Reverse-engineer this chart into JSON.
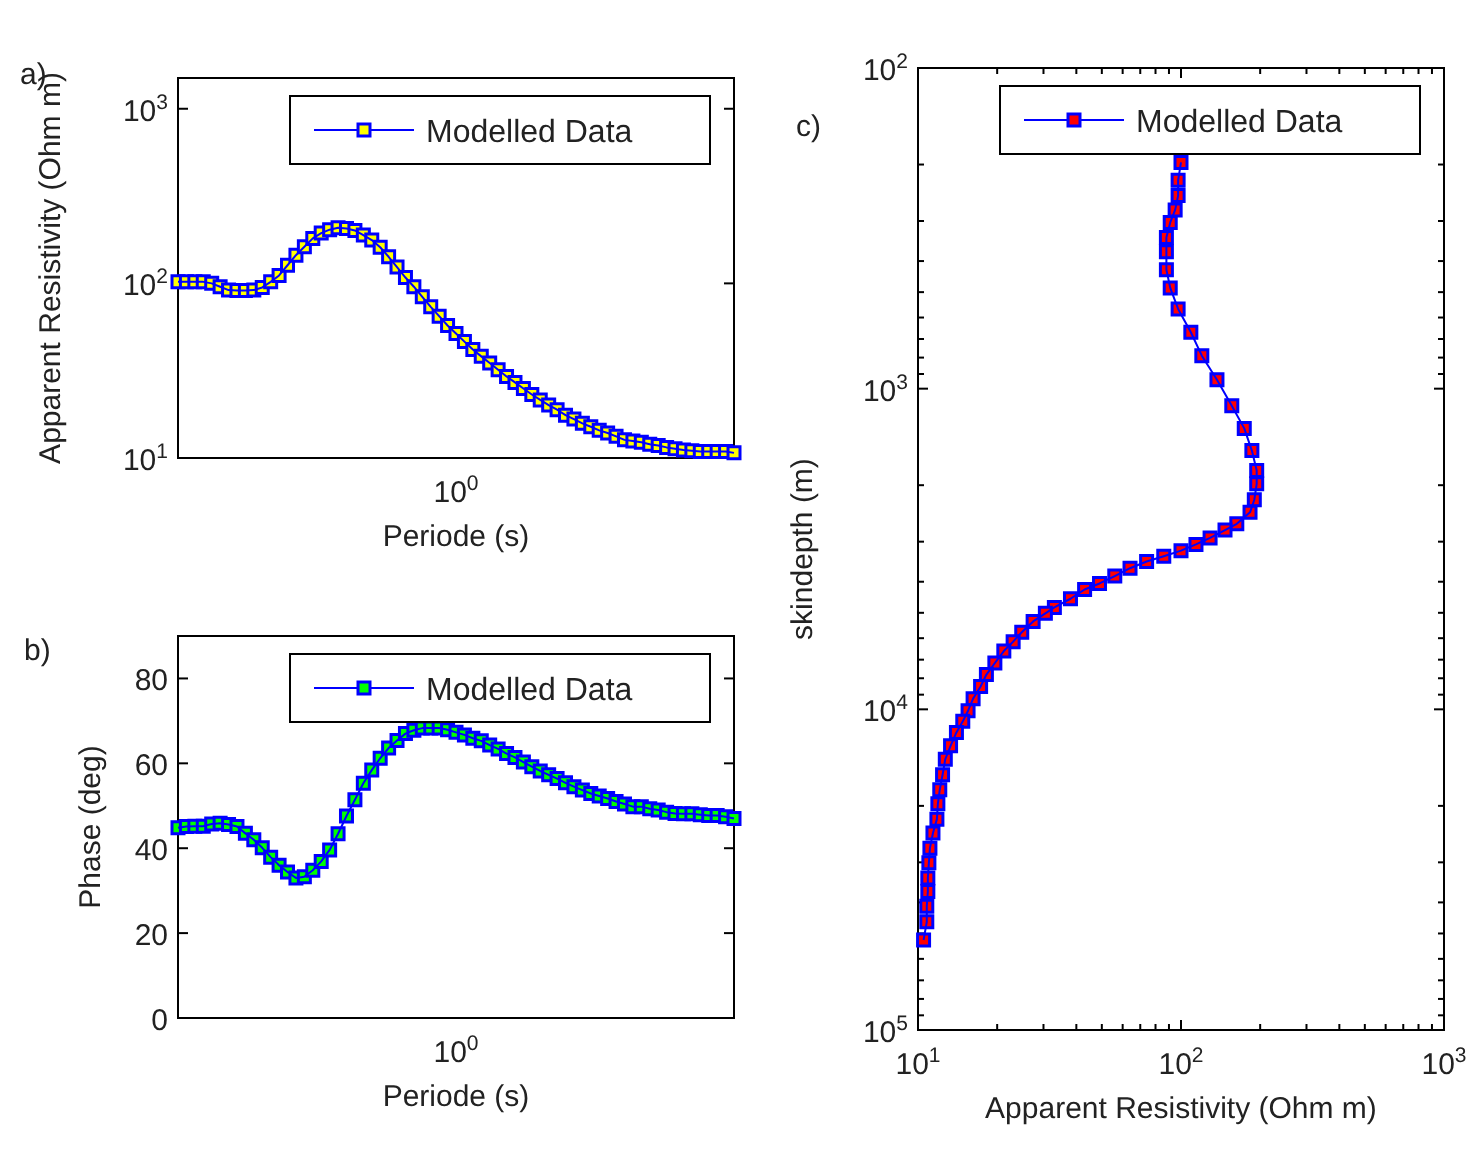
{
  "chart_data": [
    {
      "type": "line",
      "xlabel": "Periode (s)",
      "ylabel": "Apparent Resistivity (Ohm m)",
      "annotations": [
        "a)",
        "10$^{0}$"
      ],
      "log": "y",
      "grid": false,
      "legend": "top right",
      "marker": "square",
      "line_style": "solid",
      "ylim": [
        10,
        1500
      ],
      "yticks": [
        {
          "value": 10,
          "label": "10$^{1}$"
        },
        {
          "value": 100,
          "label": "10$^{2}$"
        },
        {
          "value": 1000,
          "label": "10$^{3}$"
        }
      ],
      "categories": [
        null,
        null,
        null,
        null,
        null,
        null,
        null,
        null,
        null,
        null,
        null,
        null,
        null,
        null,
        null,
        null,
        null,
        null,
        null,
        null,
        null,
        null,
        null,
        null,
        null,
        null,
        null,
        null,
        null,
        null,
        null,
        null,
        null,
        null,
        null,
        null,
        null,
        null,
        null,
        null,
        null,
        null,
        null,
        null,
        null,
        null,
        null,
        null,
        null,
        null,
        null,
        null,
        null,
        null,
        null,
        null,
        null,
        null,
        null,
        null,
        null,
        null,
        null,
        null,
        null,
        null,
        null
      ],
      "series": [
        {
          "name": "Modelled Data",
          "color": "#0000ff",
          "colors": [
            "#ffff00",
            "#ffff00",
            "#ffff00",
            "#ffff00",
            "#ffff00",
            "#ffff00",
            "#ffff00",
            "#ffff00",
            "#ffff00",
            "#ffff00",
            "#ffff00",
            "#ffff00",
            "#ffff00",
            "#ffff00",
            "#ffff00",
            "#ffff00",
            "#ffff00",
            "#ffff00",
            "#ffff00",
            "#ffff00",
            "#ffff00",
            "#ffff00",
            "#ffff00",
            "#ffff00",
            "#ffff00",
            "#ffff00",
            "#ffff00",
            "#ffff00",
            "#ffff00",
            "#ffff00",
            "#ffff00",
            "#ffff00",
            "#ffff00",
            "#ffff00",
            "#ffff00",
            "#ffff00",
            "#ffff00",
            "#ffff00",
            "#ffff00",
            "#ffff00",
            "#ffff00",
            "#ffff00",
            "#ffff00",
            "#ffff00",
            "#ffff00",
            "#ffff00",
            "#ffff00",
            "#ffff00",
            "#ffff00",
            "#ffff00",
            "#ffff00",
            "#ffff00",
            "#ffff00",
            "#ffff00",
            "#ffff00",
            "#ffff00",
            "#ffff00",
            "#ffff00",
            "#ffff00",
            "#ffff00",
            "#ffff00",
            "#ffff00",
            "#ffff00",
            "#ffff00",
            "#ffff00",
            "#ffff00",
            "#ffff00"
          ],
          "values": [
            102,
            102,
            102,
            102,
            100,
            95.7,
            91.5,
            91,
            91,
            91.5,
            94.8,
            102,
            111,
            127,
            145,
            162,
            181,
            194,
            203,
            208,
            206,
            201,
            189,
            177,
            161,
            142,
            124,
            108,
            95.7,
            83.8,
            73.4,
            64.9,
            57.4,
            51.6,
            46.4,
            41.8,
            38.2,
            35,
            32,
            29.3,
            27.1,
            25,
            23.1,
            21.5,
            20.1,
            18.9,
            17.6,
            16.7,
            15.8,
            15.1,
            14.4,
            13.9,
            13.3,
            12.7,
            12.5,
            12.3,
            12,
            11.8,
            11.5,
            11.3,
            11.1,
            11,
            10.9,
            10.9,
            10.9,
            10.9,
            10.7
          ]
        }
      ]
    },
    {
      "type": "line",
      "xlabel": "Periode (s)",
      "ylabel": "Phase (deg)",
      "annotations": [
        "b)",
        "10$^{0}$"
      ],
      "grid": false,
      "legend": "top right",
      "marker": "square",
      "line_style": "solid",
      "ylim": [
        0,
        90
      ],
      "yticks": [
        0,
        20,
        40,
        60,
        80
      ],
      "categories": [
        null,
        null,
        null,
        null,
        null,
        null,
        null,
        null,
        null,
        null,
        null,
        null,
        null,
        null,
        null,
        null,
        null,
        null,
        null,
        null,
        null,
        null,
        null,
        null,
        null,
        null,
        null,
        null,
        null,
        null,
        null,
        null,
        null,
        null,
        null,
        null,
        null,
        null,
        null,
        null,
        null,
        null,
        null,
        null,
        null,
        null,
        null,
        null,
        null,
        null,
        null,
        null,
        null,
        null,
        null,
        null,
        null,
        null,
        null,
        null,
        null,
        null,
        null,
        null,
        null,
        null,
        null
      ],
      "series": [
        {
          "name": "Modelled Data",
          "color": "#0000ff",
          "colors": [
            "#00ff00",
            "#00ff00",
            "#00ff00",
            "#00ff00",
            "#00ff00",
            "#00ff00",
            "#00ff00",
            "#00ff00",
            "#00ff00",
            "#00ff00",
            "#00ff00",
            "#00ff00",
            "#00ff00",
            "#00ff00",
            "#00ff00",
            "#00ff00",
            "#00ff00",
            "#00ff00",
            "#00ff00",
            "#00ff00",
            "#00ff00",
            "#00ff00",
            "#00ff00",
            "#00ff00",
            "#00ff00",
            "#00ff00",
            "#00ff00",
            "#00ff00",
            "#00ff00",
            "#00ff00",
            "#00ff00",
            "#00ff00",
            "#00ff00",
            "#00ff00",
            "#00ff00",
            "#00ff00",
            "#00ff00",
            "#00ff00",
            "#00ff00",
            "#00ff00",
            "#00ff00",
            "#00ff00",
            "#00ff00",
            "#00ff00",
            "#00ff00",
            "#00ff00",
            "#00ff00",
            "#00ff00",
            "#00ff00",
            "#00ff00",
            "#00ff00",
            "#00ff00",
            "#00ff00",
            "#00ff00",
            "#00ff00",
            "#00ff00",
            "#00ff00",
            "#00ff00",
            "#00ff00",
            "#00ff00",
            "#00ff00",
            "#00ff00",
            "#00ff00",
            "#00ff00",
            "#00ff00",
            "#00ff00",
            "#00ff00"
          ],
          "values": [
            44.8,
            45.1,
            45.2,
            45.2,
            45.7,
            45.9,
            45.6,
            45.1,
            43.5,
            42,
            40.1,
            37.9,
            36,
            34.4,
            33,
            33.3,
            34.8,
            36.9,
            39.6,
            43.4,
            47.6,
            51.4,
            55.3,
            58.4,
            61.2,
            63.6,
            65.4,
            67,
            67.8,
            68.3,
            68.3,
            68.3,
            67.9,
            67.3,
            66.7,
            65.9,
            65.3,
            64.3,
            63.4,
            62.3,
            61.4,
            60.3,
            59.2,
            58.2,
            57.3,
            56.4,
            55.4,
            54.5,
            53.7,
            52.9,
            52.3,
            51.7,
            51,
            50.4,
            49.8,
            49.8,
            49.3,
            49,
            48.5,
            48.2,
            48.1,
            48.1,
            47.9,
            47.7,
            47.7,
            47.4,
            47
          ]
        }
      ]
    },
    {
      "type": "line",
      "xlabel": "Apparent Resistivity (Ohm m)",
      "ylabel": "skindepth (m)",
      "annotations": [
        "c)"
      ],
      "log": "xy",
      "grid": false,
      "legend": "top right",
      "marker": "square",
      "line_style": "solid",
      "xlim": [
        10,
        1000
      ],
      "xticks": [
        {
          "value": 10,
          "label": "10$^{1}$"
        },
        {
          "value": 20,
          "label": null
        },
        {
          "value": 30,
          "label": null
        },
        {
          "value": 40,
          "label": null
        },
        {
          "value": 50,
          "label": null
        },
        {
          "value": 60,
          "label": null
        },
        {
          "value": 70,
          "label": null
        },
        {
          "value": 80,
          "label": null
        },
        {
          "value": 90,
          "label": null
        },
        {
          "value": 100,
          "label": "10$^{2}$"
        },
        {
          "value": 200,
          "label": null
        },
        {
          "value": 300,
          "label": null
        },
        {
          "value": 400,
          "label": null
        },
        {
          "value": 500,
          "label": null
        },
        {
          "value": 600,
          "label": null
        },
        {
          "value": 700,
          "label": null
        },
        {
          "value": 800,
          "label": null
        },
        {
          "value": 900,
          "label": null
        },
        {
          "value": 1000,
          "label": "10$^{3}$"
        }
      ],
      "ylim": [
        100000,
        100
      ],
      "yticks": [
        {
          "value": 100,
          "label": "10$^{2}$"
        },
        {
          "value": 200,
          "label": null
        },
        {
          "value": 300,
          "label": null
        },
        {
          "value": 400,
          "label": null
        },
        {
          "value": 500,
          "label": null
        },
        {
          "value": 600,
          "label": null
        },
        {
          "value": 700,
          "label": null
        },
        {
          "value": 800,
          "label": null
        },
        {
          "value": 900,
          "label": null
        },
        {
          "value": 1000,
          "label": "10$^{3}$"
        },
        {
          "value": 2000,
          "label": null
        },
        {
          "value": 3000,
          "label": null
        },
        {
          "value": 4000,
          "label": null
        },
        {
          "value": 5000,
          "label": null
        },
        {
          "value": 6000,
          "label": null
        },
        {
          "value": 7000,
          "label": null
        },
        {
          "value": 8000,
          "label": null
        },
        {
          "value": 9000,
          "label": null
        },
        {
          "value": 10000,
          "label": "10$^{4}$"
        },
        {
          "value": 20000,
          "label": null
        },
        {
          "value": 30000,
          "label": null
        },
        {
          "value": 40000,
          "label": null
        },
        {
          "value": 50000,
          "label": null
        },
        {
          "value": 60000,
          "label": null
        },
        {
          "value": 70000,
          "label": null
        },
        {
          "value": 80000,
          "label": null
        },
        {
          "value": 90000,
          "label": null
        },
        {
          "value": 100000,
          "label": "10$^{5}$"
        }
      ],
      "x": [
        100,
        97.5,
        97.5,
        95,
        91,
        88,
        88,
        88,
        91,
        97.5,
        109,
        120,
        137,
        156,
        174,
        186,
        194,
        194,
        190,
        183,
        163,
        147,
        129,
        114,
        100,
        86,
        74,
        64,
        56,
        49,
        43,
        38,
        33,
        30.5,
        27.4,
        24.8,
        23,
        21.2,
        19.6,
        18.2,
        17.3,
        16.2,
        15.5,
        14.8,
        14,
        13.3,
        12.7,
        12.4,
        12.1,
        11.9,
        11.8,
        11.4,
        11.1,
        11,
        10.9,
        10.9,
        10.8,
        10.8,
        10.5
      ],
      "series": [
        {
          "name": "Modelled Data",
          "color": "#0000ff",
          "colors": [
            "#ff0000",
            "#ff0000",
            "#ff0000",
            "#ff0000",
            "#ff0000",
            "#ff0000",
            "#ff0000",
            "#ff0000",
            "#ff0000",
            "#ff0000",
            "#ff0000",
            "#ff0000",
            "#ff0000",
            "#ff0000",
            "#ff0000",
            "#ff0000",
            "#ff0000",
            "#ff0000",
            "#ff0000",
            "#ff0000",
            "#ff0000",
            "#ff0000",
            "#ff0000",
            "#ff0000",
            "#ff0000",
            "#ff0000",
            "#ff0000",
            "#ff0000",
            "#ff0000",
            "#ff0000",
            "#ff0000",
            "#ff0000",
            "#ff0000",
            "#ff0000",
            "#ff0000",
            "#ff0000",
            "#ff0000",
            "#ff0000",
            "#ff0000",
            "#ff0000",
            "#ff0000",
            "#ff0000",
            "#ff0000",
            "#ff0000",
            "#ff0000",
            "#ff0000",
            "#ff0000",
            "#ff0000",
            "#ff0000",
            "#ff0000",
            "#ff0000",
            "#ff0000",
            "#ff0000",
            "#ff0000",
            "#ff0000",
            "#ff0000",
            "#ff0000",
            "#ff0000",
            "#ff0000"
          ],
          "values": [
            197,
            224,
            250,
            277,
            303,
            338,
            374,
            426,
            485,
            564,
            667,
            789,
            938,
            1130,
            1330,
            1560,
            1800,
            1980,
            2220,
            2430,
            2640,
            2760,
            2920,
            3060,
            3200,
            3330,
            3460,
            3630,
            3840,
            4050,
            4230,
            4520,
            4810,
            5020,
            5320,
            5750,
            6150,
            6580,
            7170,
            7790,
            8490,
            9260,
            10100,
            10900,
            11800,
            13000,
            14300,
            16000,
            17800,
            19700,
            22000,
            24300,
            27100,
            30100,
            33600,
            37000,
            41100,
            46000,
            52400
          ]
        }
      ]
    }
  ]
}
